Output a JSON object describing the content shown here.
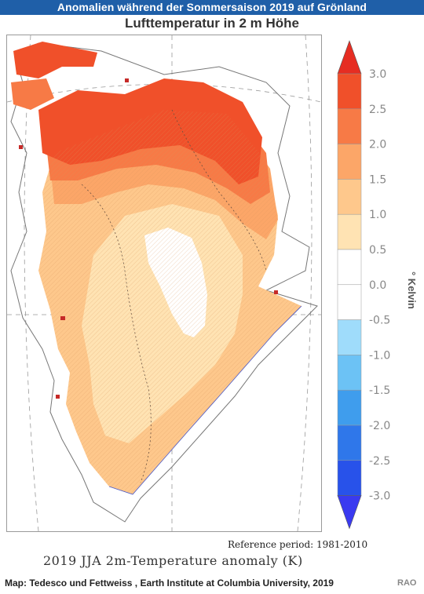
{
  "header": {
    "title": "Anomalien während der Sommersaison 2019 auf Grönland",
    "subtitle": "Lufttemperatur in 2 m Höhe"
  },
  "map": {
    "region": "Greenland",
    "shading_note_none": "",
    "reference_period": "Reference period: 1981-2010",
    "plot_title": "2019 JJA 2m-Temperature anomaly (K)"
  },
  "colorbar": {
    "unit_label": "° Kelvin",
    "ticks": [
      "3.0",
      "2.5",
      "2.0",
      "1.5",
      "1.0",
      "0.5",
      "0.0",
      "-0.5",
      "-1.0",
      "-1.5",
      "-2.0",
      "-2.5",
      "-3.0"
    ],
    "bins": [
      {
        "range": "2.5 – 3.0",
        "color": "#f0502a"
      },
      {
        "range": "2.0 – 2.5",
        "color": "#f77a46"
      },
      {
        "range": "1.5 – 2.0",
        "color": "#fca668"
      },
      {
        "range": "1.0 – 1.5",
        "color": "#fec88c"
      },
      {
        "range": "0.5 – 1.0",
        "color": "#ffe3b3"
      },
      {
        "range": "0.0 – 0.5",
        "color": "#ffffff"
      },
      {
        "range": "-0.5 – 0.0",
        "color": "#ffffff"
      },
      {
        "range": "-1.0 – -0.5",
        "color": "#9fdcfb"
      },
      {
        "range": "-1.5 – -1.0",
        "color": "#6cc2f5"
      },
      {
        "range": "-2.0 – -1.5",
        "color": "#3f9ded"
      },
      {
        "range": "-2.5 – -2.0",
        "color": "#2f77ea"
      },
      {
        "range": "-3.0 – -2.5",
        "color": "#2852ea"
      }
    ],
    "over_color": "#e62d22",
    "under_color": "#3a3af0"
  },
  "footer": {
    "credit": "Map: Tedesco und Fettweiss , Earth Institute at Columbia University, 2019",
    "source": "RAO"
  }
}
